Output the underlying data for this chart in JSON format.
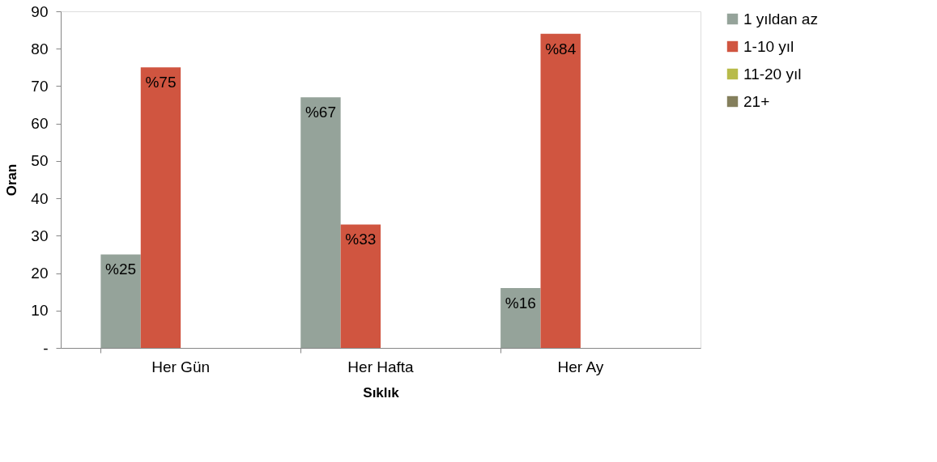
{
  "chart_data": {
    "type": "bar",
    "xlabel": "Sıklık",
    "ylabel": "Oran",
    "categories": [
      "Her Gün",
      "Her Hafta",
      "Her Ay"
    ],
    "series": [
      {
        "name": "1 yıldan az",
        "color": "#95a39a",
        "values": [
          25,
          67,
          16
        ],
        "value_labels": [
          "%25",
          "%67",
          "%16"
        ]
      },
      {
        "name": "1-10 yıl",
        "color": "#d05540",
        "values": [
          75,
          33,
          84
        ],
        "value_labels": [
          "%75",
          "%33",
          "%84"
        ]
      },
      {
        "name": "11-20 yıl",
        "color": "#b8bb4a",
        "values": [
          null,
          null,
          null
        ]
      },
      {
        "name": "21+",
        "color": "#847f5c",
        "values": [
          null,
          null,
          null
        ]
      }
    ],
    "ylim": [
      0,
      90
    ],
    "yticks": [
      {
        "value": 0,
        "label": "-"
      },
      10,
      20,
      30,
      40,
      50,
      60,
      70,
      80,
      90
    ],
    "grid": false,
    "legend": "right"
  }
}
